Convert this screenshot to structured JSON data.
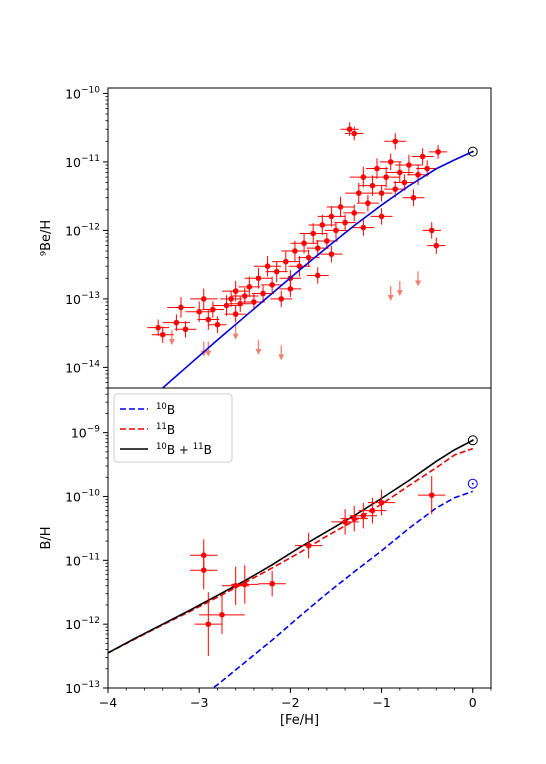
{
  "chart_data": [
    {
      "type": "scatter",
      "xlabel": "",
      "ylabel": "⁹Be/H",
      "xlim": [
        -4,
        0.2
      ],
      "ylim": [
        5e-15,
        1.2e-10
      ],
      "y_scale": "log",
      "y_ticks": [
        {
          "exp": -14,
          "label_base": "10",
          "label_exp": "−14"
        },
        {
          "exp": -13,
          "label_base": "10",
          "label_exp": "−13"
        },
        {
          "exp": -12,
          "label_base": "10",
          "label_exp": "−12"
        },
        {
          "exp": -11,
          "label_base": "10",
          "label_exp": "−11"
        },
        {
          "exp": -10,
          "label_base": "10",
          "label_exp": "−10"
        }
      ],
      "colors": {
        "points": "#ff0000",
        "upper_limits": "#f08070",
        "model": "#0000dd",
        "solar": "#000000"
      },
      "model_curve": {
        "x": [
          -4.0,
          -3.7,
          -3.4,
          -3.1,
          -2.8,
          -2.5,
          -2.2,
          -1.9,
          -1.6,
          -1.3,
          -1.0,
          -0.7,
          -0.4,
          -0.2,
          0.0
        ],
        "log10y": [
          -15.0,
          -14.65,
          -14.3,
          -13.95,
          -13.6,
          -13.26,
          -12.92,
          -12.58,
          -12.25,
          -11.93,
          -11.63,
          -11.35,
          -11.1,
          -10.97,
          -10.85
        ]
      },
      "solar_point": {
        "x": 0.0,
        "log10y": -10.85
      },
      "series": [
        {
          "name": "",
          "points": [
            {
              "x": -3.45,
              "y": 3.8e-14,
              "xe": 0.12,
              "ye": 0.12
            },
            {
              "x": -3.4,
              "y": 3e-14,
              "xe": 0.12,
              "ye": 0.12
            },
            {
              "x": -3.25,
              "y": 4.5e-14,
              "xe": 0.15,
              "ye": 0.12
            },
            {
              "x": -3.2,
              "y": 7.5e-14,
              "xe": 0.15,
              "ye": 0.15
            },
            {
              "x": -3.15,
              "y": 3.6e-14,
              "xe": 0.12,
              "ye": 0.12
            },
            {
              "x": -3.0,
              "y": 6.5e-14,
              "xe": 0.15,
              "ye": 0.15
            },
            {
              "x": -2.95,
              "y": 1e-13,
              "xe": 0.15,
              "ye": 0.15
            },
            {
              "x": -2.9,
              "y": 5e-14,
              "xe": 0.12,
              "ye": 0.15
            },
            {
              "x": -2.85,
              "y": 7e-14,
              "xe": 0.12,
              "ye": 0.12
            },
            {
              "x": -2.8,
              "y": 4.2e-14,
              "xe": 0.1,
              "ye": 0.12
            },
            {
              "x": -2.7,
              "y": 8e-14,
              "xe": 0.15,
              "ye": 0.15
            },
            {
              "x": -2.65,
              "y": 1e-13,
              "xe": 0.12,
              "ye": 0.12
            },
            {
              "x": -2.6,
              "y": 1.3e-13,
              "xe": 0.15,
              "ye": 0.15
            },
            {
              "x": -2.55,
              "y": 8.5e-14,
              "xe": 0.12,
              "ye": 0.12
            },
            {
              "x": -2.5,
              "y": 1.1e-13,
              "xe": 0.15,
              "ye": 0.12
            },
            {
              "x": -2.45,
              "y": 1.5e-13,
              "xe": 0.12,
              "ye": 0.15
            },
            {
              "x": -2.4,
              "y": 9e-14,
              "xe": 0.12,
              "ye": 0.12
            },
            {
              "x": -2.35,
              "y": 2e-13,
              "xe": 0.15,
              "ye": 0.15
            },
            {
              "x": -2.3,
              "y": 1.2e-13,
              "xe": 0.12,
              "ye": 0.12
            },
            {
              "x": -2.25,
              "y": 3e-13,
              "xe": 0.15,
              "ye": 0.15
            },
            {
              "x": -2.2,
              "y": 1.6e-13,
              "xe": 0.12,
              "ye": 0.12
            },
            {
              "x": -2.15,
              "y": 2.5e-13,
              "xe": 0.12,
              "ye": 0.15
            },
            {
              "x": -2.1,
              "y": 1e-13,
              "xe": 0.12,
              "ye": 0.12
            },
            {
              "x": -2.05,
              "y": 3.5e-13,
              "xe": 0.15,
              "ye": 0.15
            },
            {
              "x": -2.0,
              "y": 2e-13,
              "xe": 0.12,
              "ye": 0.12
            },
            {
              "x": -1.95,
              "y": 5e-13,
              "xe": 0.15,
              "ye": 0.15
            },
            {
              "x": -1.9,
              "y": 3e-13,
              "xe": 0.12,
              "ye": 0.15
            },
            {
              "x": -1.85,
              "y": 6.5e-13,
              "xe": 0.15,
              "ye": 0.15
            },
            {
              "x": -1.8,
              "y": 4e-13,
              "xe": 0.12,
              "ye": 0.12
            },
            {
              "x": -1.75,
              "y": 9e-13,
              "xe": 0.15,
              "ye": 0.15
            },
            {
              "x": -1.7,
              "y": 5.5e-13,
              "xe": 0.12,
              "ye": 0.12
            },
            {
              "x": -1.65,
              "y": 1.2e-12,
              "xe": 0.15,
              "ye": 0.15
            },
            {
              "x": -1.6,
              "y": 7e-13,
              "xe": 0.12,
              "ye": 0.12
            },
            {
              "x": -1.55,
              "y": 1.6e-12,
              "xe": 0.15,
              "ye": 0.15
            },
            {
              "x": -1.5,
              "y": 1e-12,
              "xe": 0.12,
              "ye": 0.12
            },
            {
              "x": -1.45,
              "y": 2.2e-12,
              "xe": 0.15,
              "ye": 0.15
            },
            {
              "x": -1.4,
              "y": 1.3e-12,
              "xe": 0.12,
              "ye": 0.12
            },
            {
              "x": -1.35,
              "y": 3e-11,
              "xe": 0.1,
              "ye": 0.1
            },
            {
              "x": -1.3,
              "y": 2.6e-11,
              "xe": 0.1,
              "ye": 0.1
            },
            {
              "x": -1.3,
              "y": 1.8e-12,
              "xe": 0.12,
              "ye": 0.12
            },
            {
              "x": -1.25,
              "y": 3.5e-12,
              "xe": 0.15,
              "ye": 0.15
            },
            {
              "x": -1.2,
              "y": 6e-12,
              "xe": 0.15,
              "ye": 0.15
            },
            {
              "x": -1.15,
              "y": 2.5e-12,
              "xe": 0.12,
              "ye": 0.12
            },
            {
              "x": -1.1,
              "y": 4.5e-12,
              "xe": 0.15,
              "ye": 0.15
            },
            {
              "x": -1.05,
              "y": 8e-12,
              "xe": 0.12,
              "ye": 0.15
            },
            {
              "x": -1.0,
              "y": 3.5e-12,
              "xe": 0.12,
              "ye": 0.12
            },
            {
              "x": -0.95,
              "y": 6e-12,
              "xe": 0.15,
              "ye": 0.15
            },
            {
              "x": -0.9,
              "y": 1e-11,
              "xe": 0.12,
              "ye": 0.12
            },
            {
              "x": -0.85,
              "y": 4e-12,
              "xe": 0.12,
              "ye": 0.12
            },
            {
              "x": -0.8,
              "y": 7e-12,
              "xe": 0.15,
              "ye": 0.15
            },
            {
              "x": -0.75,
              "y": 5e-12,
              "xe": 0.12,
              "ye": 0.12
            },
            {
              "x": -0.7,
              "y": 9e-12,
              "xe": 0.15,
              "ye": 0.15
            },
            {
              "x": -0.65,
              "y": 3e-12,
              "xe": 0.12,
              "ye": 0.12
            },
            {
              "x": -0.6,
              "y": 6.5e-12,
              "xe": 0.12,
              "ye": 0.15
            },
            {
              "x": -0.55,
              "y": 1.2e-11,
              "xe": 0.12,
              "ye": 0.12
            },
            {
              "x": -0.5,
              "y": 8e-12,
              "xe": 0.12,
              "ye": 0.12
            },
            {
              "x": -0.45,
              "y": 1e-12,
              "xe": 0.1,
              "ye": 0.12
            },
            {
              "x": -0.4,
              "y": 6e-13,
              "xe": 0.1,
              "ye": 0.12
            },
            {
              "x": -0.38,
              "y": 1.4e-11,
              "xe": 0.1,
              "ye": 0.1
            },
            {
              "x": -2.6,
              "y": 6e-14,
              "xe": 0.12,
              "ye": 0.12
            },
            {
              "x": -2.0,
              "y": 1.4e-13,
              "xe": 0.12,
              "ye": 0.12
            },
            {
              "x": -1.7,
              "y": 2.2e-13,
              "xe": 0.12,
              "ye": 0.12
            },
            {
              "x": -1.2,
              "y": 1.1e-12,
              "xe": 0.12,
              "ye": 0.12
            },
            {
              "x": -1.0,
              "y": 1.6e-12,
              "xe": 0.12,
              "ye": 0.12
            },
            {
              "x": -0.85,
              "y": 2e-11,
              "xe": 0.12,
              "ye": 0.12
            },
            {
              "x": -1.55,
              "y": 4.5e-13,
              "xe": 0.12,
              "ye": 0.12
            }
          ]
        }
      ],
      "upper_limits": [
        {
          "x": -3.3,
          "y": 2.5e-14
        },
        {
          "x": -2.95,
          "y": 1.7e-14
        },
        {
          "x": -2.9,
          "y": 1.7e-14
        },
        {
          "x": -2.6,
          "y": 3e-14
        },
        {
          "x": -2.35,
          "y": 1.8e-14
        },
        {
          "x": -2.1,
          "y": 1.5e-14
        },
        {
          "x": -0.9,
          "y": 1.1e-13
        },
        {
          "x": -0.8,
          "y": 1.3e-13
        },
        {
          "x": -0.6,
          "y": 1.8e-13
        }
      ]
    },
    {
      "type": "line",
      "xlabel": "[Fe/H]",
      "ylabel": "B/H",
      "xlim": [
        -4,
        0.2
      ],
      "ylim": [
        1e-13,
        5e-09
      ],
      "y_scale": "log",
      "x_ticks": [
        {
          "value": -4,
          "label": "−4"
        },
        {
          "value": -3,
          "label": "−3"
        },
        {
          "value": -2,
          "label": "−2"
        },
        {
          "value": -1,
          "label": "−1"
        },
        {
          "value": 0,
          "label": "0"
        }
      ],
      "y_ticks": [
        {
          "exp": -13,
          "label_base": "10",
          "label_exp": "−13"
        },
        {
          "exp": -12,
          "label_base": "10",
          "label_exp": "−12"
        },
        {
          "exp": -11,
          "label_base": "10",
          "label_exp": "−11"
        },
        {
          "exp": -10,
          "label_base": "10",
          "label_exp": "−10"
        },
        {
          "exp": -9,
          "label_base": "10",
          "label_exp": "−9"
        }
      ],
      "legend": {
        "position": "top-left",
        "entries": [
          {
            "iso": "10",
            "el": "B",
            "extra": "",
            "color": "#0000ee",
            "dash": "dashed"
          },
          {
            "iso": "11",
            "el": "B",
            "extra": "",
            "color": "#ee0000",
            "dash": "dashed"
          },
          {
            "iso": "10",
            "el": "B",
            "extra": "11",
            "color": "#000000",
            "dash": "solid"
          }
        ]
      },
      "series": [
        {
          "name": "¹⁰B",
          "color": "#0000ee",
          "dash": "dashed",
          "x": [
            -3.0,
            -2.8,
            -2.5,
            -2.2,
            -1.9,
            -1.6,
            -1.3,
            -1.0,
            -0.7,
            -0.4,
            -0.2,
            0.0
          ],
          "log10y": [
            -13.15,
            -12.95,
            -12.6,
            -12.25,
            -11.88,
            -11.52,
            -11.18,
            -10.85,
            -10.5,
            -10.18,
            -10.02,
            -9.92
          ]
        },
        {
          "name": "¹¹B",
          "color": "#ee0000",
          "dash": "dashed",
          "x": [
            -4.0,
            -3.7,
            -3.4,
            -3.1,
            -2.8,
            -2.5,
            -2.2,
            -1.9,
            -1.6,
            -1.3,
            -1.0,
            -0.7,
            -0.4,
            -0.2,
            0.0
          ],
          "log10y": [
            -12.45,
            -12.23,
            -12.01,
            -11.8,
            -11.58,
            -11.35,
            -11.12,
            -10.88,
            -10.62,
            -10.38,
            -10.12,
            -9.83,
            -9.55,
            -9.35,
            -9.25
          ]
        },
        {
          "name": "¹⁰B + ¹¹B",
          "color": "#000000",
          "dash": "solid",
          "x": [
            -4.0,
            -3.7,
            -3.4,
            -3.1,
            -2.8,
            -2.5,
            -2.2,
            -1.9,
            -1.6,
            -1.3,
            -1.0,
            -0.7,
            -0.4,
            -0.2,
            0.0
          ],
          "log10y": [
            -12.45,
            -12.22,
            -12.0,
            -11.78,
            -11.55,
            -11.32,
            -11.07,
            -10.8,
            -10.55,
            -10.3,
            -10.03,
            -9.75,
            -9.45,
            -9.27,
            -9.12
          ]
        }
      ],
      "solar_points": [
        {
          "x": 0.0,
          "log10y": -9.12,
          "color": "#000000"
        },
        {
          "x": 0.0,
          "log10y": -9.8,
          "color": "#0000ee"
        }
      ],
      "points": [
        {
          "x": -2.95,
          "y": 1.2e-11,
          "xe": 0.15,
          "ye": 0.25
        },
        {
          "x": -2.95,
          "y": 7e-12,
          "xe": 0.15,
          "ye": 0.3
        },
        {
          "x": -2.9,
          "y": 1e-12,
          "xe": 0.15,
          "ye": 0.5
        },
        {
          "x": -2.75,
          "y": 1.4e-12,
          "xe": 0.25,
          "ye": 0.3
        },
        {
          "x": -2.6,
          "y": 4e-12,
          "xe": 0.15,
          "ye": 0.3
        },
        {
          "x": -2.5,
          "y": 4.2e-12,
          "xe": 0.15,
          "ye": 0.3
        },
        {
          "x": -2.2,
          "y": 4.3e-12,
          "xe": 0.15,
          "ye": 0.2
        },
        {
          "x": -1.8,
          "y": 1.7e-11,
          "xe": 0.15,
          "ye": 0.2
        },
        {
          "x": -1.4,
          "y": 4e-11,
          "xe": 0.15,
          "ye": 0.2
        },
        {
          "x": -1.3,
          "y": 4.5e-11,
          "xe": 0.15,
          "ye": 0.2
        },
        {
          "x": -1.2,
          "y": 5e-11,
          "xe": 0.15,
          "ye": 0.2
        },
        {
          "x": -1.1,
          "y": 6e-11,
          "xe": 0.15,
          "ye": 0.2
        },
        {
          "x": -1.0,
          "y": 8e-11,
          "xe": 0.15,
          "ye": 0.2
        },
        {
          "x": -0.45,
          "y": 1.05e-10,
          "xe": 0.15,
          "ye": 0.3
        }
      ]
    }
  ]
}
